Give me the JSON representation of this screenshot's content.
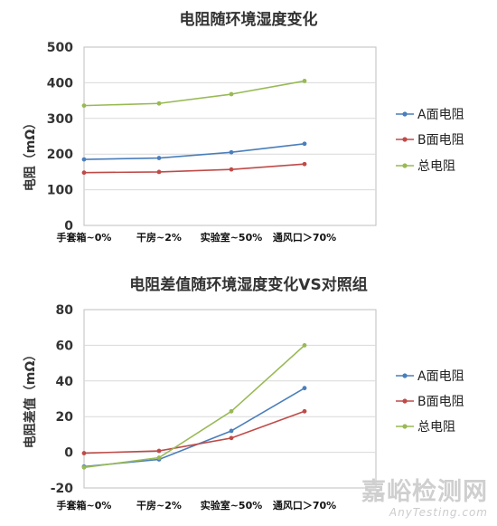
{
  "colors": {
    "A": "#4a7ebb",
    "B": "#be4b48",
    "T": "#98b954",
    "grid": "#d9d9d9",
    "frame": "#bfbfbf"
  },
  "chart_data": [
    {
      "type": "line",
      "title": "电阻随环境湿度变化",
      "ylabel": "电阻（mΩ）",
      "xlabel": "",
      "categories": [
        "手套箱~0%",
        "干房~2%",
        "实验室~50%",
        "通风口＞70%"
      ],
      "ylim": [
        0,
        500
      ],
      "yticks": [
        0,
        100,
        200,
        300,
        400,
        500
      ],
      "grid": true,
      "legend_position": "right",
      "series": [
        {
          "name": "A面电阻",
          "color": "#4a7ebb",
          "values": [
            185,
            189,
            205,
            229
          ]
        },
        {
          "name": "B面电阻",
          "color": "#be4b48",
          "values": [
            148,
            150,
            157,
            172
          ]
        },
        {
          "name": "总电阻",
          "color": "#98b954",
          "values": [
            336,
            342,
            368,
            405
          ]
        }
      ]
    },
    {
      "type": "line",
      "title": "电阻差值随环境湿度变化VS对照组",
      "ylabel": "电阻差值（mΩ）",
      "xlabel": "",
      "categories": [
        "手套箱~0%",
        "干房~2%",
        "实验室~50%",
        "通风口＞70%"
      ],
      "ylim": [
        -20,
        80
      ],
      "yticks": [
        -20,
        0,
        20,
        40,
        60,
        80
      ],
      "grid": true,
      "legend_position": "right",
      "series": [
        {
          "name": "A面电阻",
          "color": "#4a7ebb",
          "values": [
            -8,
            -4,
            12,
            36
          ]
        },
        {
          "name": "B面电阻",
          "color": "#be4b48",
          "values": [
            -0.5,
            0.8,
            8,
            23
          ]
        },
        {
          "name": "总电阻",
          "color": "#98b954",
          "values": [
            -8.5,
            -3,
            23,
            60
          ]
        }
      ]
    }
  ],
  "watermark": {
    "cn": "嘉峪检测网",
    "en": "AnyTesting.com"
  }
}
